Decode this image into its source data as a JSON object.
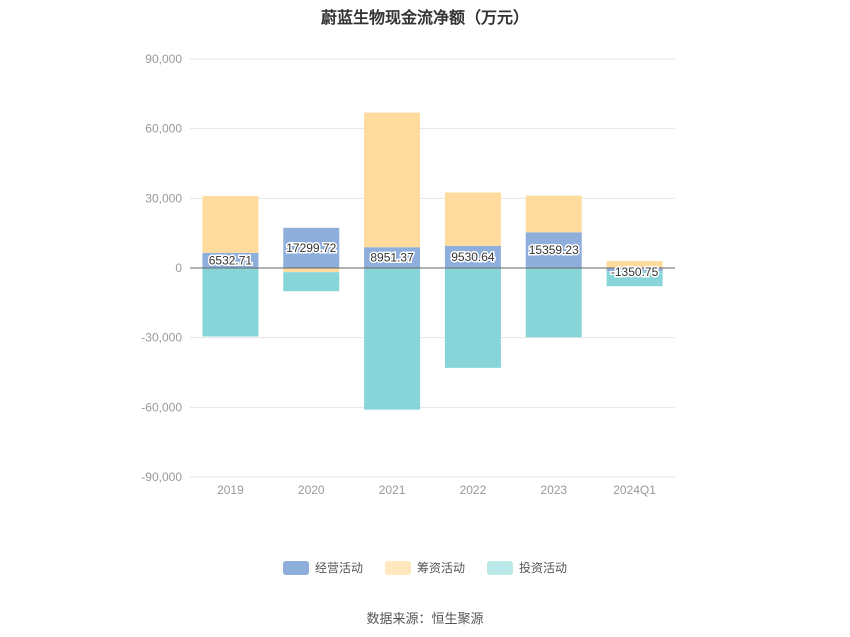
{
  "chart_data": {
    "type": "bar",
    "stacked": true,
    "title": "蔚蓝生物现金流净额（万元）",
    "categories": [
      "2019",
      "2020",
      "2021",
      "2022",
      "2023",
      "2024Q1"
    ],
    "ylim": [
      -90000,
      90000
    ],
    "yticks": [
      "90,000",
      "60,000",
      "30,000",
      "0",
      "-30,000",
      "-60,000",
      "-90,000"
    ],
    "ytick_values": [
      90000,
      60000,
      30000,
      0,
      -30000,
      -60000,
      -90000
    ],
    "grid": true,
    "legend_position": "bottom",
    "series": [
      {
        "name": "经营活动",
        "color": "#8eaedb",
        "values": [
          6532.71,
          17299.72,
          8951.37,
          9530.64,
          15359.23,
          -1350.75
        ],
        "labels": [
          "6532.71",
          "17299.72",
          "8951.37",
          "9530.64",
          "15359.23",
          "-1350.75"
        ]
      },
      {
        "name": "筹资活动",
        "color": "#ffdb9e",
        "values": [
          24500,
          -1800,
          58000,
          23000,
          15800,
          3000
        ]
      },
      {
        "name": "投资活动",
        "color": "#88d5d9",
        "values": [
          -29500,
          -8200,
          -61000,
          -43000,
          -29800,
          -6500
        ]
      }
    ]
  },
  "legend": {
    "items": [
      {
        "label": "经营活动",
        "color": "#8eaedb"
      },
      {
        "label": "筹资活动",
        "color": "#ffe7bf"
      },
      {
        "label": "投资活动",
        "color": "#bde8e9"
      }
    ]
  },
  "source": "数据来源：恒生聚源"
}
